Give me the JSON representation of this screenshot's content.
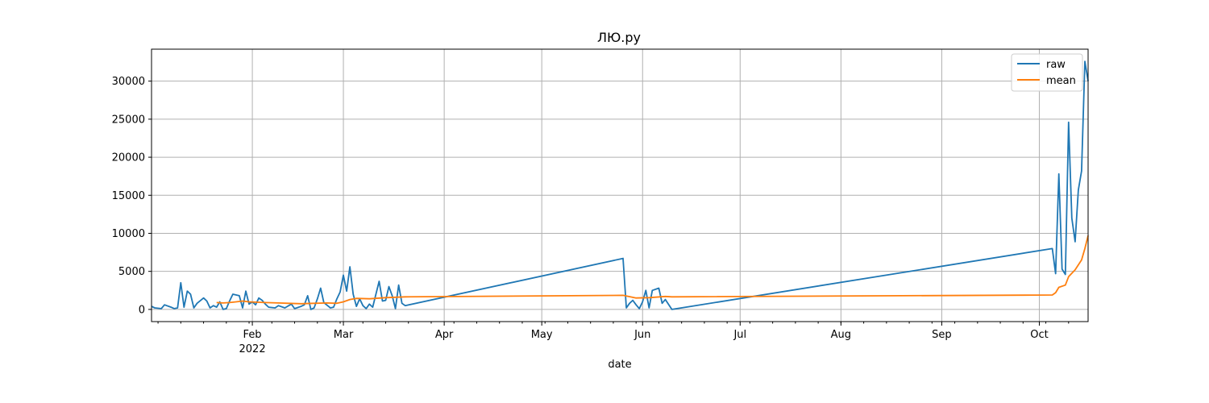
{
  "chart_data": {
    "type": "line",
    "title": "ЛЮ.ру",
    "xlabel": "date",
    "ylabel": "",
    "x_range": [
      "2022-01-01",
      "2022-10-16"
    ],
    "ylim": [
      -1600,
      34200
    ],
    "grid": true,
    "legend_position": "top-right",
    "x_ticks": [
      {
        "date": "2022-02-01",
        "label": "Feb",
        "sublabel": "2022"
      },
      {
        "date": "2022-03-01",
        "label": "Mar"
      },
      {
        "date": "2022-04-01",
        "label": "Apr"
      },
      {
        "date": "2022-05-01",
        "label": "May"
      },
      {
        "date": "2022-06-01",
        "label": "Jun"
      },
      {
        "date": "2022-07-01",
        "label": "Jul"
      },
      {
        "date": "2022-08-01",
        "label": "Aug"
      },
      {
        "date": "2022-09-01",
        "label": "Sep"
      },
      {
        "date": "2022-10-01",
        "label": "Oct"
      }
    ],
    "y_ticks": [
      0,
      5000,
      10000,
      15000,
      20000,
      25000,
      30000
    ],
    "series": [
      {
        "name": "raw",
        "color": "#1f77b4",
        "points": [
          [
            "2022-01-01",
            400
          ],
          [
            "2022-01-02",
            200
          ],
          [
            "2022-01-04",
            100
          ],
          [
            "2022-01-05",
            600
          ],
          [
            "2022-01-07",
            300
          ],
          [
            "2022-01-08",
            100
          ],
          [
            "2022-01-09",
            200
          ],
          [
            "2022-01-10",
            3500
          ],
          [
            "2022-01-11",
            300
          ],
          [
            "2022-01-12",
            2400
          ],
          [
            "2022-01-13",
            2000
          ],
          [
            "2022-01-14",
            200
          ],
          [
            "2022-01-15",
            800
          ],
          [
            "2022-01-17",
            1500
          ],
          [
            "2022-01-18",
            1100
          ],
          [
            "2022-01-19",
            200
          ],
          [
            "2022-01-20",
            500
          ],
          [
            "2022-01-21",
            300
          ],
          [
            "2022-01-22",
            1000
          ],
          [
            "2022-01-23",
            0
          ],
          [
            "2022-01-24",
            100
          ],
          [
            "2022-01-25",
            1100
          ],
          [
            "2022-01-26",
            2000
          ],
          [
            "2022-01-28",
            1800
          ],
          [
            "2022-01-29",
            200
          ],
          [
            "2022-01-30",
            2400
          ],
          [
            "2022-01-31",
            700
          ],
          [
            "2022-02-01",
            1000
          ],
          [
            "2022-02-02",
            600
          ],
          [
            "2022-02-03",
            1500
          ],
          [
            "2022-02-04",
            1200
          ],
          [
            "2022-02-05",
            700
          ],
          [
            "2022-02-06",
            300
          ],
          [
            "2022-02-08",
            200
          ],
          [
            "2022-02-09",
            500
          ],
          [
            "2022-02-11",
            200
          ],
          [
            "2022-02-13",
            700
          ],
          [
            "2022-02-14",
            100
          ],
          [
            "2022-02-16",
            400
          ],
          [
            "2022-02-17",
            600
          ],
          [
            "2022-02-18",
            1800
          ],
          [
            "2022-02-19",
            0
          ],
          [
            "2022-02-20",
            200
          ],
          [
            "2022-02-21",
            1400
          ],
          [
            "2022-02-22",
            2800
          ],
          [
            "2022-02-23",
            900
          ],
          [
            "2022-02-25",
            200
          ],
          [
            "2022-02-26",
            300
          ],
          [
            "2022-02-27",
            1400
          ],
          [
            "2022-02-28",
            2300
          ],
          [
            "2022-03-01",
            4500
          ],
          [
            "2022-03-02",
            2400
          ],
          [
            "2022-03-03",
            5600
          ],
          [
            "2022-03-04",
            2000
          ],
          [
            "2022-03-05",
            400
          ],
          [
            "2022-03-06",
            1400
          ],
          [
            "2022-03-07",
            500
          ],
          [
            "2022-03-08",
            100
          ],
          [
            "2022-03-09",
            700
          ],
          [
            "2022-03-10",
            300
          ],
          [
            "2022-03-11",
            2000
          ],
          [
            "2022-03-12",
            3700
          ],
          [
            "2022-03-13",
            1100
          ],
          [
            "2022-03-14",
            1200
          ],
          [
            "2022-03-15",
            3000
          ],
          [
            "2022-03-16",
            1800
          ],
          [
            "2022-03-17",
            100
          ],
          [
            "2022-03-18",
            3200
          ],
          [
            "2022-03-19",
            800
          ],
          [
            "2022-03-20",
            500
          ],
          [
            "2022-05-26",
            6700
          ],
          [
            "2022-05-27",
            200
          ],
          [
            "2022-05-28",
            800
          ],
          [
            "2022-05-29",
            1200
          ],
          [
            "2022-05-30",
            600
          ],
          [
            "2022-05-31",
            100
          ],
          [
            "2022-06-01",
            1000
          ],
          [
            "2022-06-02",
            2500
          ],
          [
            "2022-06-03",
            200
          ],
          [
            "2022-06-04",
            2500
          ],
          [
            "2022-06-06",
            2800
          ],
          [
            "2022-06-07",
            800
          ],
          [
            "2022-06-08",
            1300
          ],
          [
            "2022-06-10",
            0
          ],
          [
            "2022-10-05",
            8000
          ],
          [
            "2022-10-06",
            4700
          ],
          [
            "2022-10-07",
            17800
          ],
          [
            "2022-10-08",
            5300
          ],
          [
            "2022-10-09",
            4600
          ],
          [
            "2022-10-10",
            24600
          ],
          [
            "2022-10-11",
            12000
          ],
          [
            "2022-10-12",
            8900
          ],
          [
            "2022-10-13",
            15700
          ],
          [
            "2022-10-14",
            18200
          ],
          [
            "2022-10-15",
            32600
          ],
          [
            "2022-10-16",
            30000
          ]
        ]
      },
      {
        "name": "mean",
        "color": "#ff7f0e",
        "points": [
          [
            "2022-01-21",
            900
          ],
          [
            "2022-01-23",
            850
          ],
          [
            "2022-01-25",
            900
          ],
          [
            "2022-01-27",
            1000
          ],
          [
            "2022-01-29",
            1100
          ],
          [
            "2022-01-31",
            1000
          ],
          [
            "2022-02-02",
            950
          ],
          [
            "2022-02-05",
            900
          ],
          [
            "2022-02-09",
            850
          ],
          [
            "2022-02-12",
            800
          ],
          [
            "2022-02-16",
            750
          ],
          [
            "2022-02-20",
            800
          ],
          [
            "2022-02-24",
            850
          ],
          [
            "2022-02-27",
            800
          ],
          [
            "2022-03-01",
            1000
          ],
          [
            "2022-03-03",
            1300
          ],
          [
            "2022-03-05",
            1450
          ],
          [
            "2022-03-09",
            1400
          ],
          [
            "2022-03-14",
            1550
          ],
          [
            "2022-03-20",
            1650
          ],
          [
            "2022-05-26",
            1850
          ],
          [
            "2022-05-30",
            1500
          ],
          [
            "2022-06-03",
            1550
          ],
          [
            "2022-06-08",
            1700
          ],
          [
            "2022-06-10",
            1650
          ],
          [
            "2022-10-05",
            1900
          ],
          [
            "2022-10-06",
            2200
          ],
          [
            "2022-10-07",
            2900
          ],
          [
            "2022-10-09",
            3200
          ],
          [
            "2022-10-10",
            4300
          ],
          [
            "2022-10-12",
            5200
          ],
          [
            "2022-10-14",
            6500
          ],
          [
            "2022-10-15",
            8000
          ],
          [
            "2022-10-16",
            9700
          ]
        ]
      }
    ]
  }
}
